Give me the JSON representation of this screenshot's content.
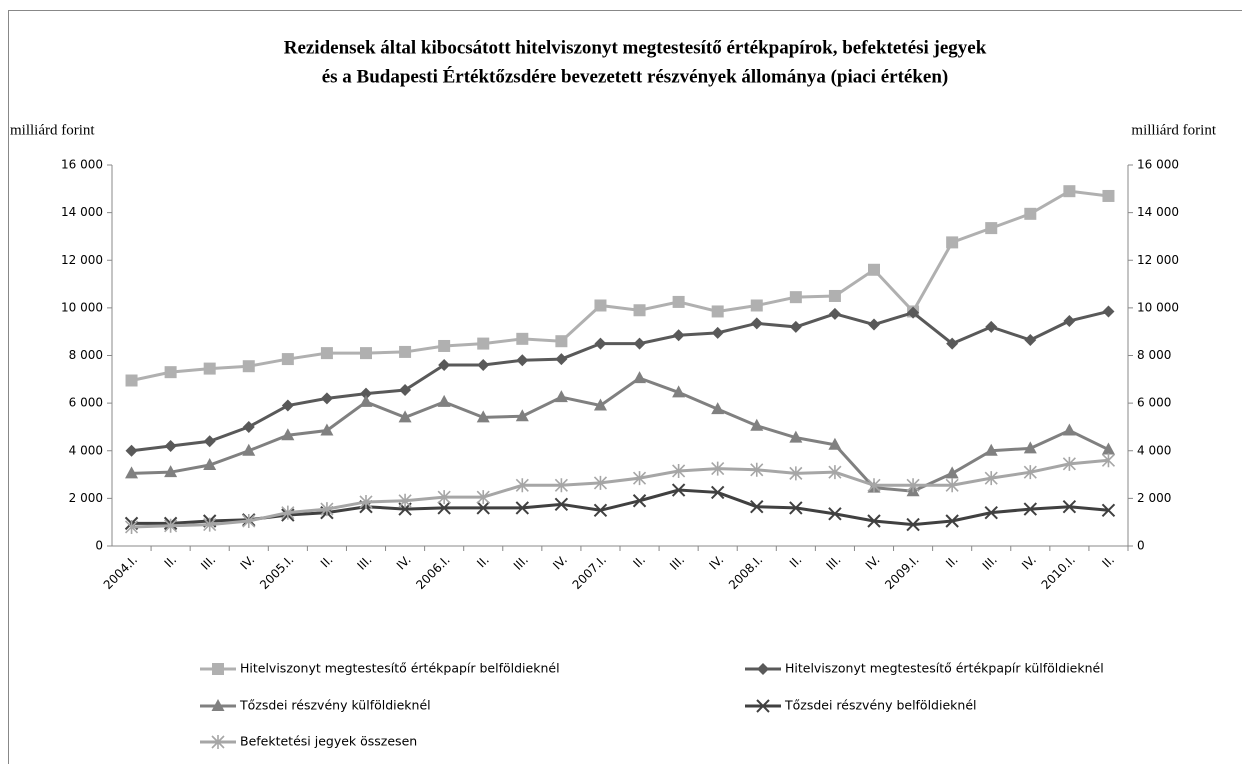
{
  "chart_data": {
    "type": "line",
    "title": [
      "Rezidensek által kibocsátott hitelviszonyt megtestesítő értékpapírok, befektetési jegyek",
      "és a Budapesti Értéktőzsdére bevezetett részvények állománya (piaci értéken)"
    ],
    "ylabel": "milliárd forint",
    "y2label": "milliárd forint",
    "categories": [
      "2004.I.",
      "II.",
      "III.",
      "IV.",
      "2005.I.",
      "II.",
      "III.",
      "IV.",
      "2006.I.",
      "II.",
      "III.",
      "IV.",
      "2007.I.",
      "II.",
      "III.",
      "IV.",
      "2008.I.",
      "II.",
      "III.",
      "IV.",
      "2009.I.",
      "II.",
      "III.",
      "IV.",
      "2010.I.",
      "II."
    ],
    "ylim": [
      0,
      16000
    ],
    "yticks": [
      0,
      {
        "value": 2000,
        "label": "2 000"
      },
      {
        "value": 4000,
        "label": "4 000"
      },
      {
        "value": 6000,
        "label": "6 000"
      },
      {
        "value": 8000,
        "label": "8 000"
      },
      {
        "value": 10000,
        "label": "10 000"
      },
      {
        "value": 12000,
        "label": "12 000"
      },
      {
        "value": 14000,
        "label": "14 000"
      },
      {
        "value": 16000,
        "label": "16 000"
      }
    ],
    "y2lim": [
      0,
      16000
    ],
    "y2ticks": [
      0,
      {
        "value": 2000,
        "label": "2 000"
      },
      {
        "value": 4000,
        "label": "4 000"
      },
      {
        "value": 6000,
        "label": "6 000"
      },
      {
        "value": 8000,
        "label": "8 000"
      },
      {
        "value": 10000,
        "label": "10 000"
      },
      {
        "value": 12000,
        "label": "12 000"
      },
      {
        "value": 14000,
        "label": "14 000"
      },
      {
        "value": 16000,
        "label": "16 000"
      }
    ],
    "series": [
      {
        "name": "Hitelviszonyt megtestesítő értékpapír belföldieknél",
        "color": "#b0b0b0",
        "marker": "square",
        "values": [
          6950,
          7300,
          7450,
          7550,
          7850,
          8100,
          8100,
          8150,
          8400,
          8500,
          8700,
          8600,
          10100,
          9900,
          10250,
          9850,
          10100,
          10450,
          10500,
          11600,
          9850,
          12750,
          13350,
          13950,
          14900,
          14700
        ]
      },
      {
        "name": "Hitelviszonyt megtestesítő értékpapír külföldieknél",
        "color": "#595959",
        "marker": "diamond",
        "values": [
          4000,
          4200,
          4400,
          5000,
          5900,
          6200,
          6400,
          6550,
          7600,
          7600,
          7800,
          7850,
          8500,
          8500,
          8850,
          8950,
          9350,
          9200,
          9750,
          9300,
          9800,
          8500,
          9200,
          8650,
          9450,
          9850
        ]
      },
      {
        "name": "Tőzsdei részvény külföldieknél",
        "color": "#808080",
        "marker": "triangle",
        "values": [
          3050,
          3100,
          3400,
          4000,
          4650,
          4850,
          6050,
          5400,
          6050,
          5400,
          5450,
          6250,
          5900,
          7050,
          6450,
          5750,
          5050,
          4550,
          4250,
          2450,
          2300,
          3050,
          4000,
          4100,
          4850,
          4050
        ]
      },
      {
        "name": "Tőzsdei részvény belföldieknél",
        "color": "#404040",
        "marker": "x",
        "values": [
          950,
          950,
          1050,
          1100,
          1300,
          1400,
          1650,
          1550,
          1600,
          1600,
          1600,
          1750,
          1500,
          1900,
          2350,
          2250,
          1650,
          1600,
          1350,
          1050,
          900,
          1050,
          1400,
          1550,
          1650,
          1500
        ]
      },
      {
        "name": "Befektetési jegyek összesen",
        "color": "#a6a6a6",
        "marker": "star",
        "values": [
          800,
          850,
          900,
          1050,
          1400,
          1550,
          1850,
          1900,
          2050,
          2050,
          2550,
          2550,
          2650,
          2850,
          3150,
          3250,
          3200,
          3050,
          3100,
          2550,
          2550,
          2550,
          2850,
          3100,
          3450,
          3600
        ]
      }
    ]
  }
}
